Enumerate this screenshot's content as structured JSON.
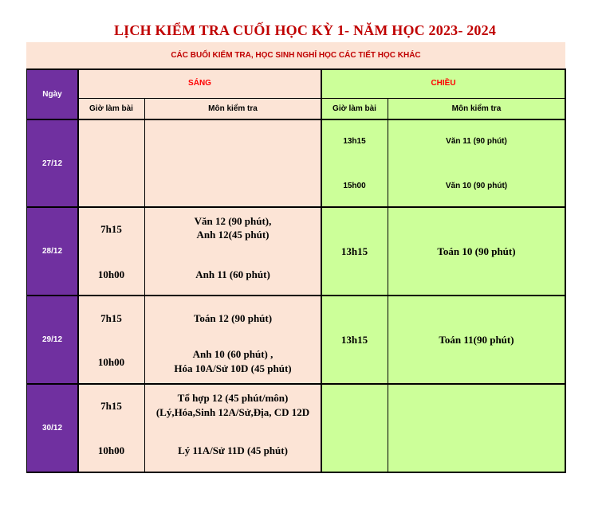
{
  "title": "LỊCH KIỂM TRA CUỐI HỌC KỲ 1- NĂM HỌC 2023- 2024",
  "note": "CÁC BUỔI KIỂM TRA, HỌC SINH NGHỈ HỌC CÁC TIẾT HỌC KHÁC",
  "header": {
    "day": "Ngày",
    "morning": "SÁNG",
    "afternoon": "CHIỀU",
    "time": "Giờ làm bài",
    "subject": "Môn kiểm tra"
  },
  "rows": [
    {
      "date": "27/12",
      "am_time_1": "",
      "am_subject_1": "",
      "am_time_2": "",
      "am_subject_2": "",
      "pm_time_1": "13h15",
      "pm_subject_1": "Văn 11 (90 phút)",
      "pm_time_2": "15h00",
      "pm_subject_2": "Văn 10 (90 phút)"
    },
    {
      "date": "28/12",
      "am_time_1": "7h15",
      "am_subject_1a": "Văn 12 (90 phút),",
      "am_subject_1b": "Anh 12(45 phút)",
      "am_time_2": "10h00",
      "am_subject_2": "Anh 11 (60 phút)",
      "pm_time": "13h15",
      "pm_subject": "Toán 10 (90 phút)"
    },
    {
      "date": "29/12",
      "am_time_1": "7h15",
      "am_subject_1": "Toán 12 (90 phút)",
      "am_time_2": "10h00",
      "am_subject_2a": "Anh 10 (60 phút) ,",
      "am_subject_2b": "Hóa 10A/Sử 10D (45 phút)",
      "pm_time": "13h15",
      "pm_subject": "Toán 11(90 phút)"
    },
    {
      "date": "30/12",
      "am_time_1": "7h15",
      "am_subject_1a": "Tổ hợp 12  (45 phút/môn)",
      "am_subject_1b": "(Lý,Hóa,Sinh 12A/Sử,Địa, CD 12D",
      "am_time_2": "10h00",
      "am_subject_2": "Lý 11A/Sử 11D (45 phút)",
      "pm_time": "",
      "pm_subject": ""
    }
  ],
  "colors": {
    "title": "#c00000",
    "note_bg": "#fce4d6",
    "day_col": "#7030a0",
    "morning_bg": "#fce4d6",
    "afternoon_bg": "#ccff99"
  }
}
